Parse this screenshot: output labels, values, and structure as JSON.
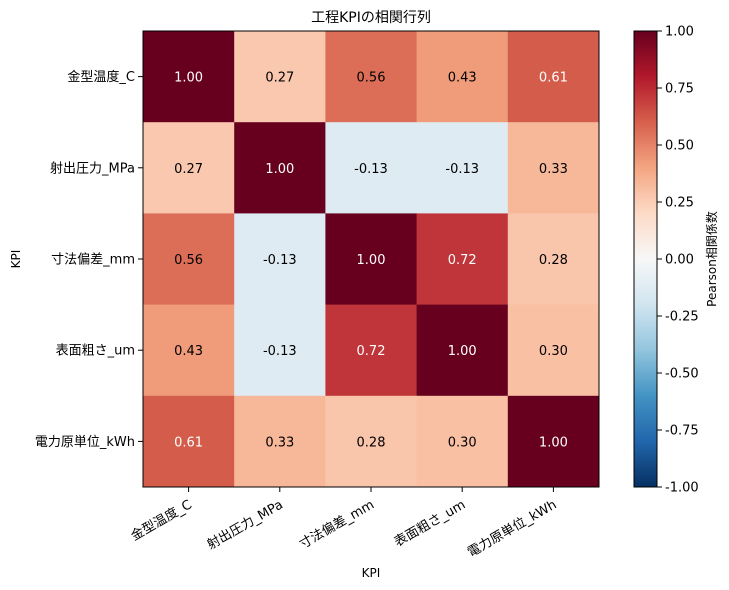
{
  "chart_data": {
    "type": "heatmap",
    "title": "工程KPIの相関行列",
    "xlabel": "KPI",
    "ylabel": "KPI",
    "categories": [
      "金型温度_C",
      "射出圧力_MPa",
      "寸法偏差_mm",
      "表面粗さ_um",
      "電力原単位_kWh"
    ],
    "matrix": [
      [
        1.0,
        0.27,
        0.56,
        0.43,
        0.61
      ],
      [
        0.27,
        1.0,
        -0.13,
        -0.13,
        0.33
      ],
      [
        0.56,
        -0.13,
        1.0,
        0.72,
        0.28
      ],
      [
        0.43,
        -0.13,
        0.72,
        1.0,
        0.3
      ],
      [
        0.61,
        0.33,
        0.28,
        0.3,
        1.0
      ]
    ],
    "colormap": "RdBu_r",
    "vmin": -1.0,
    "vmax": 1.0,
    "colorbar": {
      "label": "Pearson相関係数",
      "ticks": [
        "1.00",
        "0.75",
        "0.50",
        "0.25",
        "0.00",
        "-0.25",
        "-0.50",
        "-0.75",
        "-1.00"
      ]
    }
  }
}
